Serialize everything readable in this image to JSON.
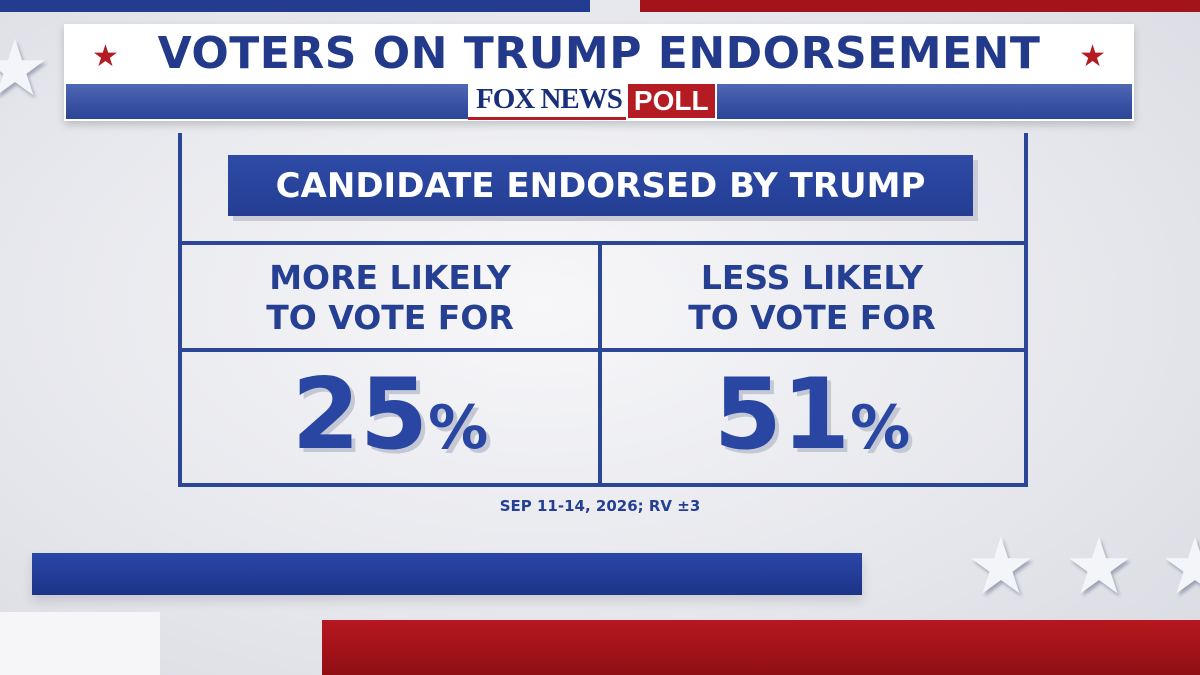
{
  "header": {
    "title": "VOTERS ON TRUMP ENDORSEMENT",
    "logo_text": "FOX NEWS",
    "logo_badge": "POLL"
  },
  "chart_data": {
    "type": "table",
    "title": "CANDIDATE ENDORSED BY TRUMP",
    "columns": [
      "MORE LIKELY\nTO VOTE FOR",
      "LESS LIKELY\nTO VOTE FOR"
    ],
    "values": [
      25,
      51
    ],
    "unit": "%"
  },
  "table": {
    "subhead": "CANDIDATE ENDORSED BY TRUMP",
    "cells": [
      {
        "line1": "MORE LIKELY",
        "line2": "TO VOTE FOR",
        "value": "25",
        "unit": "%"
      },
      {
        "line1": "LESS LIKELY",
        "line2": "TO VOTE FOR",
        "value": "51",
        "unit": "%"
      }
    ]
  },
  "footnote": "SEP 11-14, 2026; RV ±3",
  "icons": {
    "header_star": "★",
    "decor_star": "★"
  },
  "colors": {
    "navy": "#233a8b",
    "red": "#b51b22",
    "panel": "#e6e7ec"
  }
}
